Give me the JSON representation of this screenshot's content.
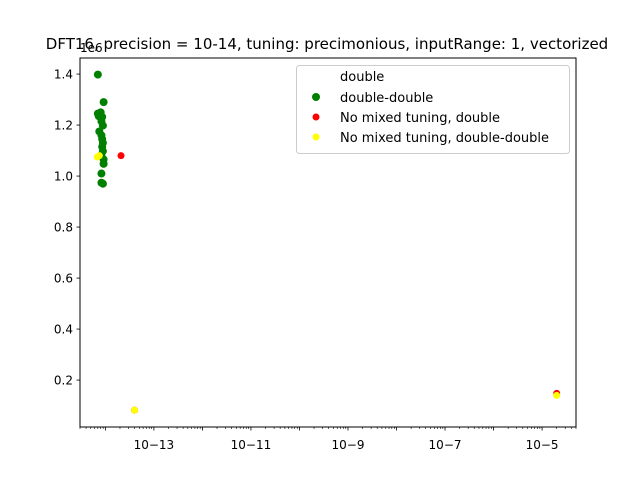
{
  "chart_data": {
    "type": "scatter",
    "title": "DFT16, precision = 10-14, tuning: precimonious, inputRange: 1, vectorized",
    "xlabel": "",
    "ylabel": "",
    "xscale": "log",
    "xlim": [
      3e-15,
      5e-05
    ],
    "ylim": [
      0.016,
      1.463
    ],
    "y_offset_label": "1e6",
    "grid": false,
    "legend_position": "top-right",
    "legend_header": "double",
    "x_ticks": [
      {
        "value": 1e-13,
        "label": "10−13"
      },
      {
        "value": 1e-11,
        "label": "10−11"
      },
      {
        "value": 1e-09,
        "label": "10−9"
      },
      {
        "value": 1e-07,
        "label": "10−7"
      },
      {
        "value": 1e-05,
        "label": "10−5"
      }
    ],
    "y_ticks": [
      {
        "value": 0.2,
        "label": "0.2"
      },
      {
        "value": 0.4,
        "label": "0.4"
      },
      {
        "value": 0.6,
        "label": "0.6"
      },
      {
        "value": 0.8,
        "label": "0.8"
      },
      {
        "value": 1.0,
        "label": "1.0"
      },
      {
        "value": 1.2,
        "label": "1.2"
      },
      {
        "value": 1.4,
        "label": "1.4"
      }
    ],
    "series": [
      {
        "name": "double-double",
        "color": "#008000",
        "size": 4,
        "points": [
          {
            "x": 7e-15,
            "y": 1.398
          },
          {
            "x": 7e-15,
            "y": 1.245
          },
          {
            "x": 7.3e-15,
            "y": 1.235
          },
          {
            "x": 8e-15,
            "y": 1.25
          },
          {
            "x": 8.6e-15,
            "y": 1.232
          },
          {
            "x": 8.3e-15,
            "y": 1.215
          },
          {
            "x": 8.9e-15,
            "y": 1.198
          },
          {
            "x": 9.2e-15,
            "y": 1.29
          },
          {
            "x": 7.5e-15,
            "y": 1.175
          },
          {
            "x": 8.3e-15,
            "y": 1.16
          },
          {
            "x": 8.6e-15,
            "y": 1.145
          },
          {
            "x": 8.9e-15,
            "y": 1.13
          },
          {
            "x": 8.6e-15,
            "y": 1.115
          },
          {
            "x": 8.9e-15,
            "y": 1.098
          },
          {
            "x": 8.3e-15,
            "y": 1.083
          },
          {
            "x": 9.2e-15,
            "y": 1.065
          },
          {
            "x": 9.2e-15,
            "y": 1.048
          },
          {
            "x": 8.3e-15,
            "y": 1.01
          },
          {
            "x": 8.3e-15,
            "y": 0.974
          },
          {
            "x": 8.9e-15,
            "y": 0.97
          }
        ]
      },
      {
        "name": "No mixed tuning, double",
        "color": "#ff0000",
        "size": 3.5,
        "points": [
          {
            "x": 2.1e-14,
            "y": 1.08
          },
          {
            "x": 4e-14,
            "y": 0.082
          },
          {
            "x": 2e-05,
            "y": 0.148
          }
        ]
      },
      {
        "name": "No mixed tuning, double-double",
        "color": "#ffff00",
        "size": 3.5,
        "points": [
          {
            "x": 6.8e-15,
            "y": 1.075
          },
          {
            "x": 7.5e-15,
            "y": 1.08
          },
          {
            "x": 4e-14,
            "y": 0.082
          },
          {
            "x": 2e-05,
            "y": 0.14
          }
        ]
      }
    ]
  }
}
